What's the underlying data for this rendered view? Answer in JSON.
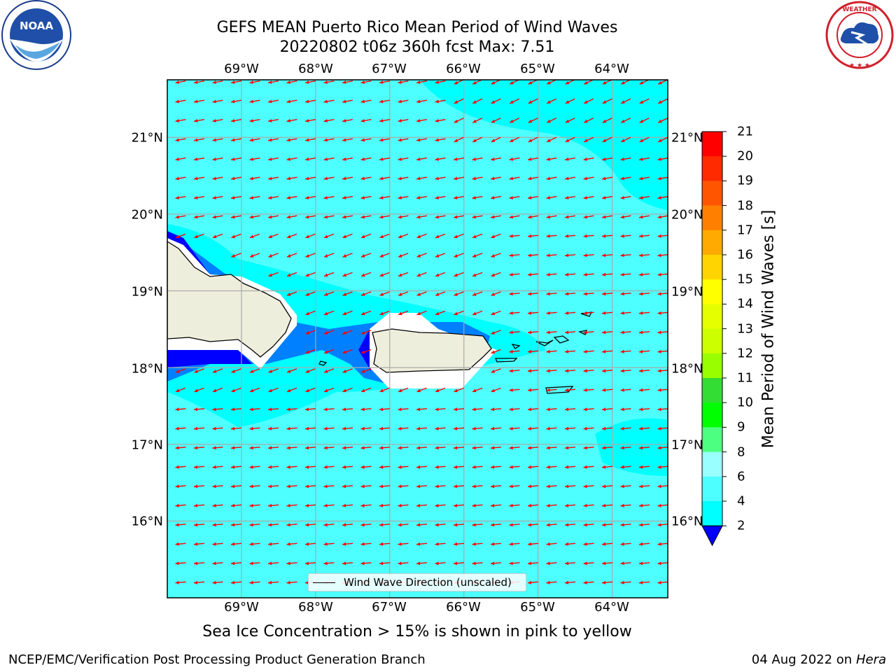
{
  "title": {
    "line1": "GEFS MEAN Puerto Rico Mean Period of Wind Waves",
    "line2": "20220802 t06z 360h fcst   Max: 7.51"
  },
  "logos": {
    "left": {
      "icon": "noaa-logo-icon",
      "text": "NOAA"
    },
    "right": {
      "icon": "nws-logo-icon",
      "text": "NATIONAL WEATHER SERVICE"
    }
  },
  "map": {
    "lon_ticks": [
      "69°W",
      "68°W",
      "67°W",
      "66°W",
      "65°W",
      "64°W"
    ],
    "lat_ticks": [
      "21°N",
      "20°N",
      "19°N",
      "18°N",
      "17°N",
      "16°N"
    ],
    "lon_range": [
      -70.0,
      -63.25
    ],
    "lat_range": [
      15.0,
      21.75
    ],
    "field_color": "#4dffff",
    "arrow_color": "#ff0000",
    "land_color": "#eeeedc"
  },
  "colorbar": {
    "title": "Mean Period of Wind Waves [s]",
    "labels": [
      "21",
      "20",
      "19",
      "18",
      "17",
      "16",
      "15",
      "14",
      "13",
      "12",
      "11",
      "10",
      "9",
      "8",
      "6",
      "4",
      "2"
    ],
    "colors": [
      "#ff0000",
      "#ff2a00",
      "#ff5500",
      "#ff8000",
      "#ffaa00",
      "#ffd400",
      "#ffff00",
      "#e6ff00",
      "#ccff00",
      "#99ff00",
      "#33dd33",
      "#00ff00",
      "#4dff80",
      "#99ffff",
      "#4dffff",
      "#00ffff",
      "#0080ff"
    ],
    "under_color": "#0000ff"
  },
  "legend": {
    "label": "Wind Wave Direction (unscaled)"
  },
  "note": "Sea Ice Concentration > 15% is shown in pink to yellow",
  "footer": {
    "left": "NCEP/EMC/Verification Post Processing Product Generation Branch",
    "right_date": "04 Aug 2022 on",
    "right_host": "Hera"
  }
}
